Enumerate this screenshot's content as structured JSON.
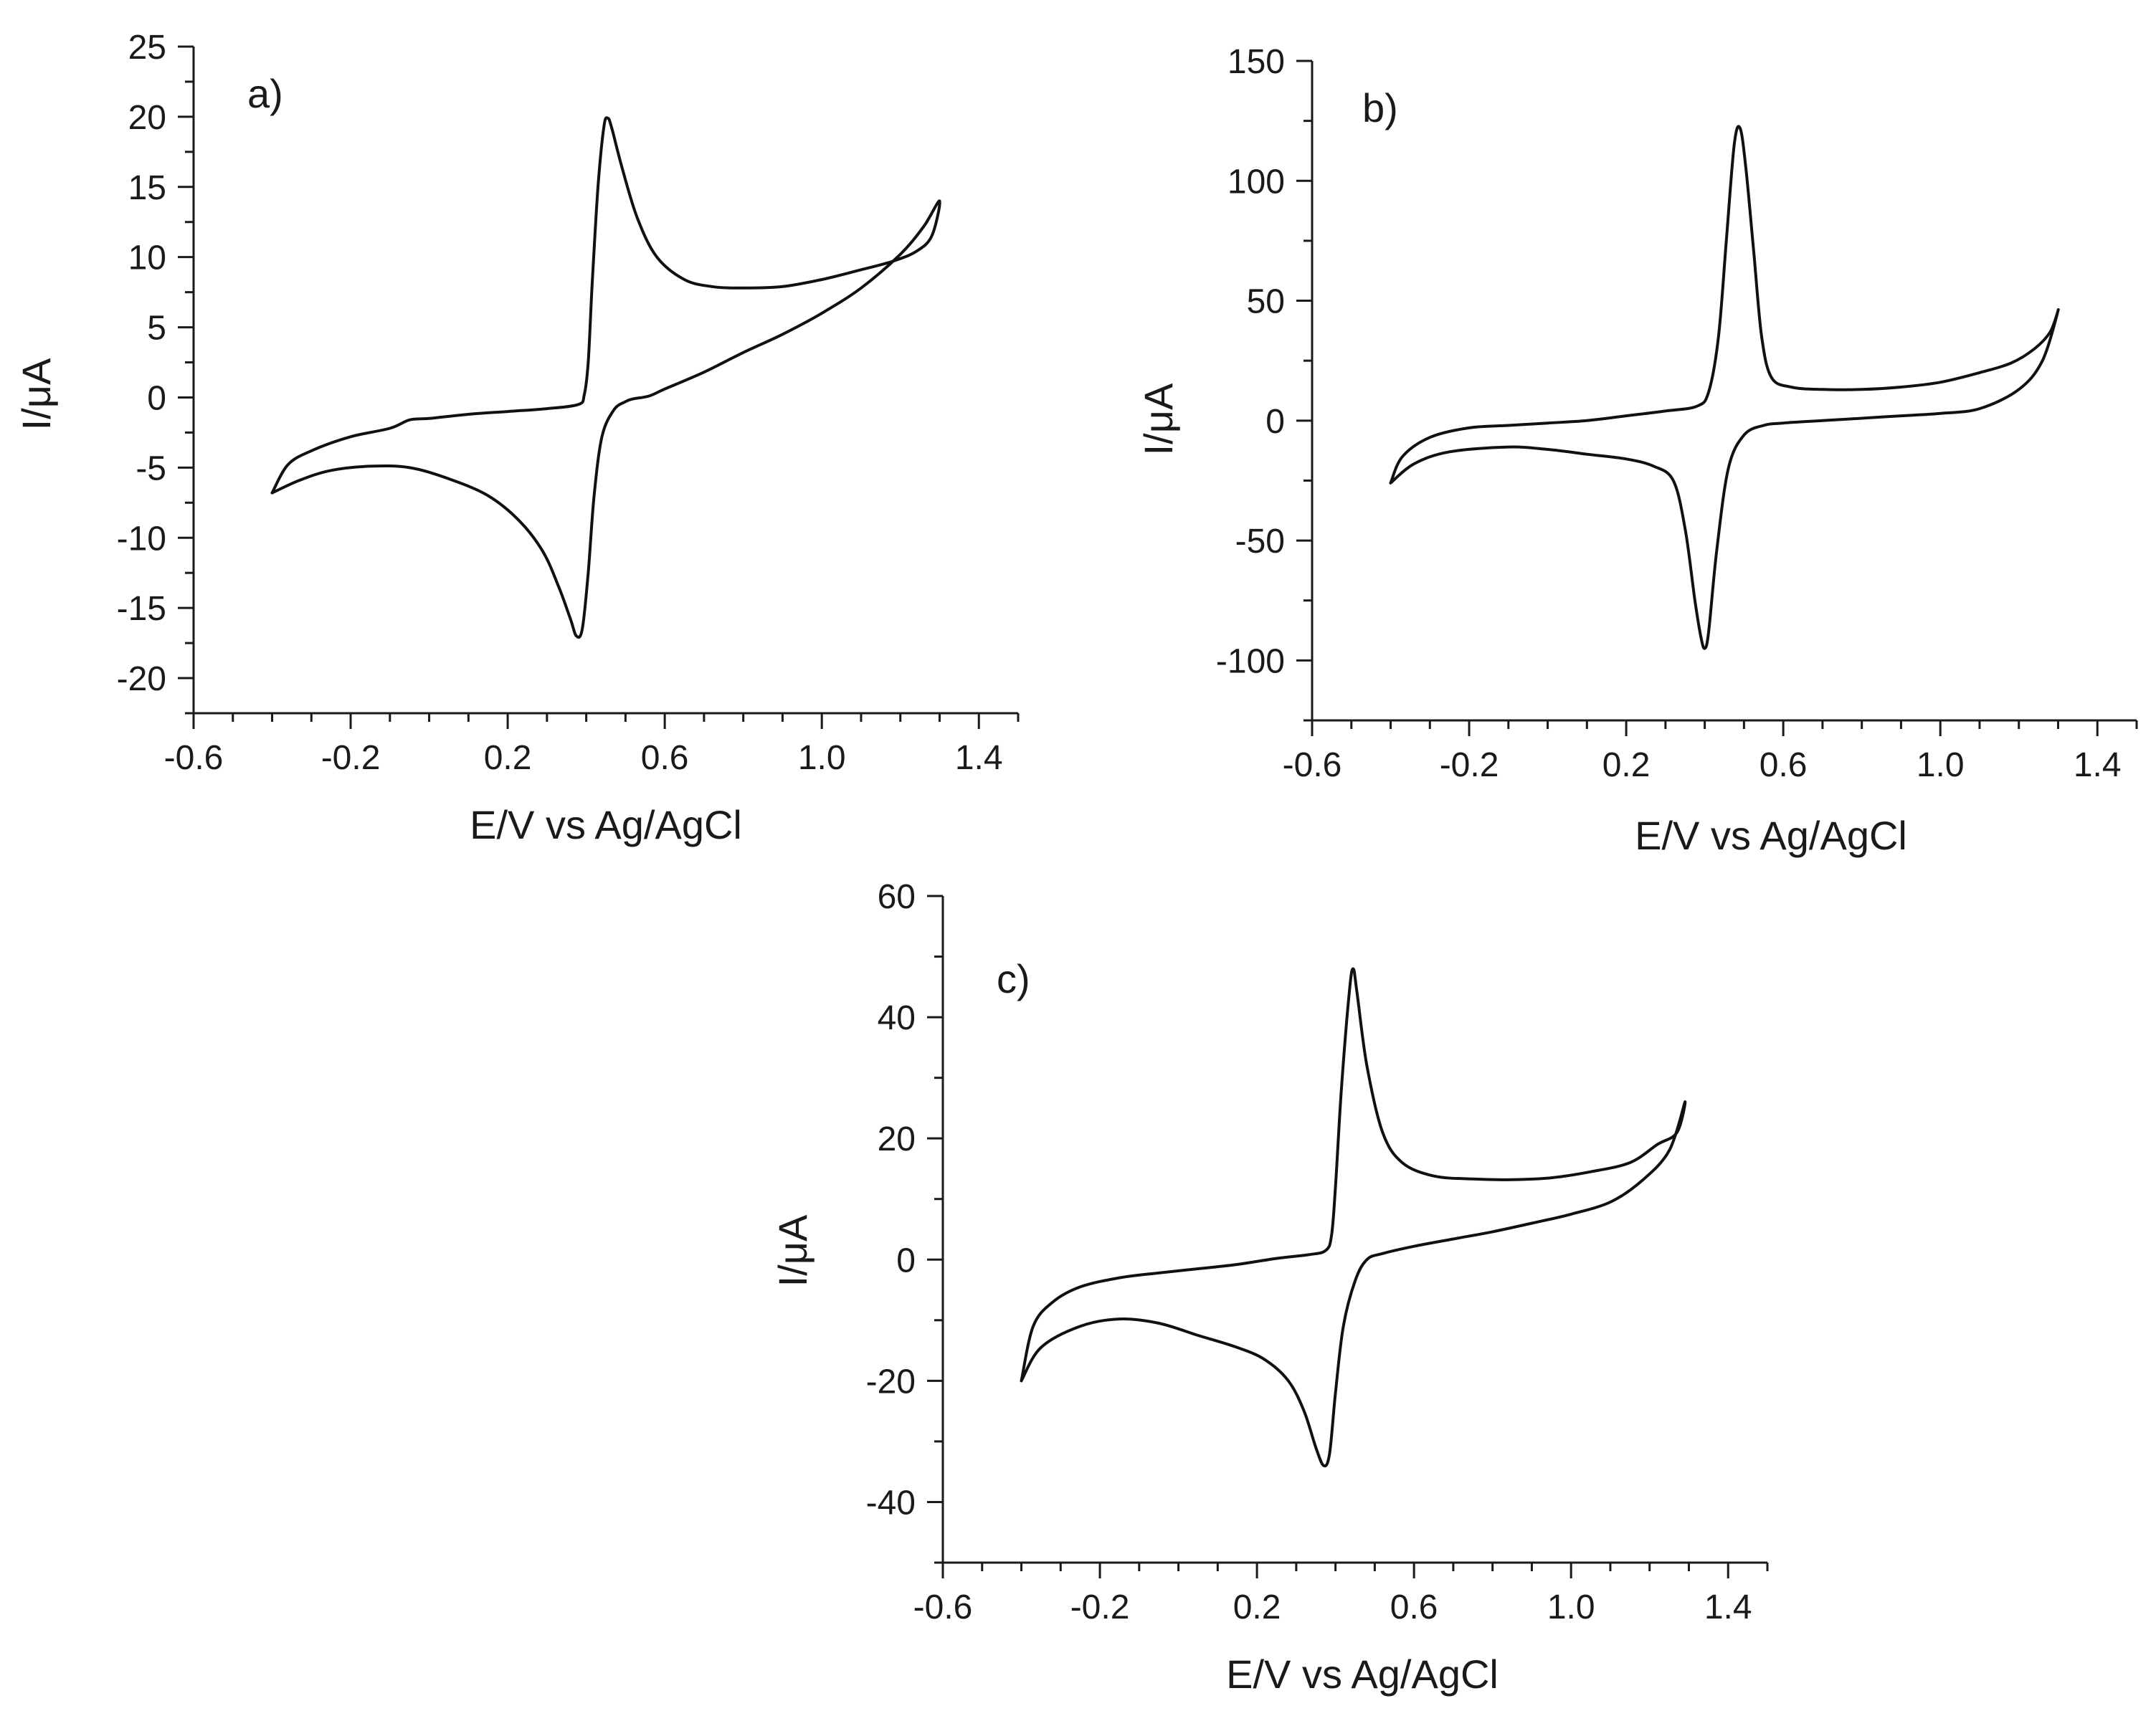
{
  "chart_data": [
    {
      "type": "line",
      "panel_label": "a)",
      "xlabel": "E/V vs Ag/AgCl",
      "ylabel": "I/μA",
      "xlim": [
        -0.6,
        1.5
      ],
      "ylim": [
        -22.5,
        25
      ],
      "x_ticks": [
        -0.6,
        -0.2,
        0.2,
        0.6,
        1.0,
        1.4
      ],
      "x_tick_labels": [
        "-0.6",
        "-0.2",
        "0.2",
        "0.6",
        "1.0",
        "1.4"
      ],
      "y_ticks": [
        -20,
        -15,
        -10,
        -5,
        0,
        5,
        10,
        15,
        20,
        25
      ],
      "y_tick_labels": [
        "-20",
        "-15",
        "-10",
        "-5",
        "0",
        "5",
        "10",
        "15",
        "20",
        "25"
      ],
      "grid": false,
      "series": [
        {
          "points": [
            [
              -0.4,
              -6.8
            ],
            [
              -0.33,
              -5.9
            ],
            [
              -0.25,
              -5.2
            ],
            [
              -0.15,
              -4.9
            ],
            [
              -0.05,
              -5.0
            ],
            [
              0.05,
              -5.8
            ],
            [
              0.15,
              -7.0
            ],
            [
              0.23,
              -8.8
            ],
            [
              0.29,
              -11.0
            ],
            [
              0.33,
              -13.5
            ],
            [
              0.36,
              -15.8
            ],
            [
              0.375,
              -17.0
            ],
            [
              0.39,
              -16.5
            ],
            [
              0.405,
              -12.5
            ],
            [
              0.42,
              -7.0
            ],
            [
              0.44,
              -2.8
            ],
            [
              0.47,
              -0.9
            ],
            [
              0.5,
              -0.3
            ],
            [
              0.52,
              -0.1
            ],
            [
              0.56,
              0.1
            ],
            [
              0.6,
              0.6
            ],
            [
              0.7,
              1.8
            ],
            [
              0.8,
              3.2
            ],
            [
              0.9,
              4.5
            ],
            [
              1.0,
              6.0
            ],
            [
              1.1,
              7.8
            ],
            [
              1.2,
              10.2
            ],
            [
              1.26,
              12.2
            ],
            [
              1.3,
              14.0
            ],
            [
              1.28,
              11.5
            ],
            [
              1.24,
              10.4
            ],
            [
              1.18,
              9.7
            ],
            [
              1.1,
              9.1
            ],
            [
              1.0,
              8.4
            ],
            [
              0.9,
              7.9
            ],
            [
              0.8,
              7.8
            ],
            [
              0.72,
              7.9
            ],
            [
              0.65,
              8.4
            ],
            [
              0.58,
              10.0
            ],
            [
              0.53,
              12.8
            ],
            [
              0.49,
              16.5
            ],
            [
              0.465,
              19.2
            ],
            [
              0.455,
              19.9
            ],
            [
              0.445,
              19.3
            ],
            [
              0.43,
              15.0
            ],
            [
              0.415,
              8.0
            ],
            [
              0.405,
              2.5
            ],
            [
              0.395,
              0.2
            ],
            [
              0.38,
              -0.5
            ],
            [
              0.3,
              -0.8
            ],
            [
              0.2,
              -1.0
            ],
            [
              0.1,
              -1.2
            ],
            [
              0.0,
              -1.5
            ],
            [
              -0.05,
              -1.6
            ],
            [
              -0.1,
              -2.2
            ],
            [
              -0.2,
              -2.8
            ],
            [
              -0.3,
              -3.8
            ],
            [
              -0.36,
              -4.8
            ],
            [
              -0.4,
              -6.8
            ]
          ]
        }
      ]
    },
    {
      "type": "line",
      "panel_label": "b)",
      "xlabel": "E/V vs Ag/AgCl",
      "ylabel": "I/μA",
      "xlim": [
        -0.6,
        1.5
      ],
      "ylim": [
        -125,
        150
      ],
      "x_ticks": [
        -0.6,
        -0.2,
        0.2,
        0.6,
        1.0,
        1.4
      ],
      "x_tick_labels": [
        "-0.6",
        "-0.2",
        "0.2",
        "0.6",
        "1.0",
        "1.4"
      ],
      "y_ticks": [
        -100,
        -50,
        0,
        50,
        100,
        150
      ],
      "y_tick_labels": [
        "-100",
        "-50",
        "0",
        "50",
        "100",
        "150"
      ],
      "grid": false,
      "series": [
        {
          "points": [
            [
              -0.4,
              -26
            ],
            [
              -0.34,
              -18
            ],
            [
              -0.25,
              -13
            ],
            [
              -0.1,
              -11
            ],
            [
              0.0,
              -12
            ],
            [
              0.1,
              -14
            ],
            [
              0.2,
              -16
            ],
            [
              0.27,
              -19
            ],
            [
              0.32,
              -25
            ],
            [
              0.35,
              -45
            ],
            [
              0.375,
              -75
            ],
            [
              0.39,
              -90
            ],
            [
              0.4,
              -95
            ],
            [
              0.41,
              -88
            ],
            [
              0.43,
              -55
            ],
            [
              0.46,
              -20
            ],
            [
              0.5,
              -6
            ],
            [
              0.55,
              -2
            ],
            [
              0.6,
              -1
            ],
            [
              0.7,
              0
            ],
            [
              0.8,
              1
            ],
            [
              0.9,
              2
            ],
            [
              1.0,
              3
            ],
            [
              1.1,
              5
            ],
            [
              1.2,
              13
            ],
            [
              1.26,
              25
            ],
            [
              1.3,
              46
            ],
            [
              1.28,
              37
            ],
            [
              1.24,
              30
            ],
            [
              1.18,
              24
            ],
            [
              1.1,
              20
            ],
            [
              1.0,
              16
            ],
            [
              0.9,
              14
            ],
            [
              0.8,
              13
            ],
            [
              0.7,
              13
            ],
            [
              0.62,
              14
            ],
            [
              0.57,
              18
            ],
            [
              0.545,
              35
            ],
            [
              0.525,
              70
            ],
            [
              0.505,
              105
            ],
            [
              0.49,
              122
            ],
            [
              0.475,
              115
            ],
            [
              0.455,
              75
            ],
            [
              0.435,
              35
            ],
            [
              0.41,
              12
            ],
            [
              0.38,
              6
            ],
            [
              0.3,
              4
            ],
            [
              0.2,
              2
            ],
            [
              0.1,
              0
            ],
            [
              0.0,
              -1
            ],
            [
              -0.1,
              -2
            ],
            [
              -0.2,
              -3
            ],
            [
              -0.3,
              -7
            ],
            [
              -0.37,
              -15
            ],
            [
              -0.4,
              -26
            ]
          ]
        }
      ]
    },
    {
      "type": "line",
      "panel_label": "c)",
      "xlabel": "E/V vs Ag/AgCl",
      "ylabel": "I/μA",
      "xlim": [
        -0.6,
        1.5
      ],
      "ylim": [
        -50,
        60
      ],
      "x_ticks": [
        -0.6,
        -0.2,
        0.2,
        0.6,
        1.0,
        1.4
      ],
      "x_tick_labels": [
        "-0.6",
        "-0.2",
        "0.2",
        "0.6",
        "1.0",
        "1.4"
      ],
      "y_ticks": [
        -40,
        -20,
        0,
        20,
        40,
        60
      ],
      "y_tick_labels": [
        "-40",
        "-20",
        "0",
        "20",
        "40",
        "60"
      ],
      "grid": false,
      "series": [
        {
          "points": [
            [
              -0.4,
              -20
            ],
            [
              -0.35,
              -14.5
            ],
            [
              -0.25,
              -11
            ],
            [
              -0.15,
              -9.8
            ],
            [
              -0.05,
              -10.5
            ],
            [
              0.05,
              -12.5
            ],
            [
              0.15,
              -14.5
            ],
            [
              0.22,
              -16.5
            ],
            [
              0.28,
              -20
            ],
            [
              0.32,
              -25
            ],
            [
              0.35,
              -31
            ],
            [
              0.37,
              -34
            ],
            [
              0.385,
              -32
            ],
            [
              0.4,
              -22
            ],
            [
              0.42,
              -11
            ],
            [
              0.45,
              -3.5
            ],
            [
              0.48,
              0
            ],
            [
              0.52,
              1.0
            ],
            [
              0.6,
              2.2
            ],
            [
              0.7,
              3.4
            ],
            [
              0.8,
              4.6
            ],
            [
              0.9,
              6.0
            ],
            [
              1.0,
              7.5
            ],
            [
              1.1,
              9.5
            ],
            [
              1.18,
              13
            ],
            [
              1.25,
              18
            ],
            [
              1.29,
              26
            ],
            [
              1.27,
              21
            ],
            [
              1.22,
              19
            ],
            [
              1.15,
              16
            ],
            [
              1.05,
              14.5
            ],
            [
              0.95,
              13.5
            ],
            [
              0.85,
              13.2
            ],
            [
              0.75,
              13.3
            ],
            [
              0.65,
              13.8
            ],
            [
              0.57,
              16
            ],
            [
              0.52,
              21
            ],
            [
              0.48,
              32
            ],
            [
              0.455,
              44
            ],
            [
              0.445,
              48
            ],
            [
              0.435,
              44
            ],
            [
              0.415,
              28
            ],
            [
              0.4,
              12
            ],
            [
              0.39,
              4
            ],
            [
              0.375,
              1.5
            ],
            [
              0.33,
              0.8
            ],
            [
              0.25,
              0.2
            ],
            [
              0.15,
              -0.8
            ],
            [
              0.05,
              -1.5
            ],
            [
              -0.05,
              -2.2
            ],
            [
              -0.15,
              -3
            ],
            [
              -0.25,
              -4.5
            ],
            [
              -0.32,
              -7
            ],
            [
              -0.37,
              -11
            ],
            [
              -0.4,
              -20
            ]
          ]
        }
      ]
    }
  ]
}
